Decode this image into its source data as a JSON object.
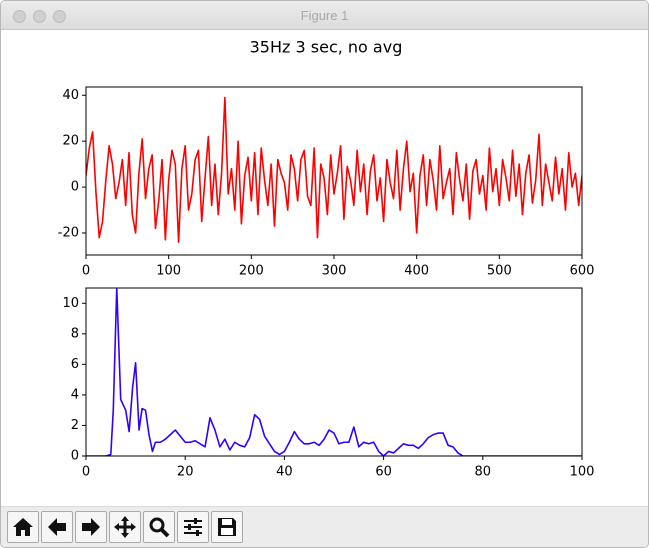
{
  "window_title": "Figure 1",
  "figure_title": "35Hz 3 sec, no avg",
  "chart_data": [
    {
      "type": "line",
      "x": [
        0,
        4,
        8,
        12,
        16,
        20,
        24,
        28,
        32,
        36,
        40,
        44,
        48,
        52,
        56,
        60,
        64,
        68,
        72,
        76,
        80,
        84,
        88,
        92,
        96,
        100,
        104,
        108,
        112,
        116,
        120,
        124,
        128,
        132,
        136,
        140,
        144,
        148,
        152,
        156,
        160,
        164,
        168,
        172,
        176,
        180,
        184,
        188,
        192,
        196,
        200,
        204,
        208,
        212,
        216,
        220,
        224,
        228,
        232,
        236,
        240,
        244,
        248,
        252,
        256,
        260,
        264,
        268,
        272,
        276,
        280,
        284,
        288,
        292,
        296,
        300,
        304,
        308,
        312,
        316,
        320,
        324,
        328,
        332,
        336,
        340,
        344,
        348,
        352,
        356,
        360,
        364,
        368,
        372,
        376,
        380,
        384,
        388,
        392,
        396,
        400,
        404,
        408,
        412,
        416,
        420,
        424,
        428,
        432,
        436,
        440,
        444,
        448,
        452,
        456,
        460,
        464,
        468,
        472,
        476,
        480,
        484,
        488,
        492,
        496,
        500,
        504,
        508,
        512,
        516,
        520,
        524,
        528,
        532,
        536,
        540,
        544,
        548,
        552,
        556,
        560,
        564,
        568,
        572,
        576,
        580,
        584,
        588,
        592,
        596,
        600
      ],
      "series": [
        {
          "name": null,
          "color": "#ff0000",
          "values": [
            5,
            17,
            24,
            -2,
            -22,
            -15,
            3,
            18,
            10,
            -5,
            2,
            12,
            -8,
            15,
            -12,
            -20,
            6,
            21,
            -5,
            8,
            14,
            -18,
            -6,
            12,
            -23,
            3,
            16,
            10,
            -24,
            8,
            18,
            -10,
            -3,
            12,
            16,
            -15,
            4,
            22,
            -8,
            10,
            -12,
            6,
            39,
            -3,
            8,
            -10,
            20,
            -16,
            5,
            13,
            -6,
            15,
            -12,
            17,
            3,
            -8,
            10,
            -17,
            12,
            6,
            2,
            -10,
            14,
            8,
            -6,
            12,
            16,
            -4,
            -8,
            17,
            -22,
            10,
            4,
            -12,
            14,
            -3,
            6,
            18,
            -14,
            9,
            3,
            -8,
            16,
            -2,
            10,
            -12,
            7,
            14,
            -6,
            4,
            -15,
            12,
            2,
            -5,
            16,
            -10,
            8,
            20,
            -2,
            6,
            -20,
            5,
            14,
            -8,
            12,
            3,
            -10,
            18,
            -5,
            2,
            8,
            -12,
            15,
            3,
            -6,
            10,
            -14,
            7,
            12,
            -3,
            5,
            -10,
            17,
            -2,
            8,
            -8,
            12,
            4,
            -6,
            16,
            -4,
            10,
            -12,
            6,
            14,
            -7,
            3,
            23,
            -8,
            10,
            2,
            -6,
            13,
            -3,
            8,
            -10,
            15,
            0,
            6,
            -8,
            5
          ]
        }
      ],
      "xlim": [
        0,
        600
      ],
      "xticks": [
        0,
        100,
        200,
        300,
        400,
        500,
        600
      ],
      "ylim": [
        -29.6,
        43.6
      ],
      "yticks": [
        -20,
        0,
        20,
        40
      ]
    },
    {
      "type": "line",
      "x": [
        0,
        4,
        5,
        5.5,
        6.2,
        7,
        8,
        8.7,
        9.4,
        10,
        10.7,
        11.3,
        12,
        12.7,
        13.4,
        14,
        15,
        16,
        17,
        18,
        19,
        20,
        21,
        22,
        23,
        24,
        25,
        26,
        27,
        28,
        29,
        30,
        31,
        32,
        33,
        34,
        35,
        36,
        37,
        38,
        39,
        40,
        41,
        42,
        43,
        44,
        45,
        46,
        47,
        48,
        49,
        50,
        51,
        52,
        53,
        54,
        55,
        56,
        57,
        58,
        59,
        60,
        61,
        62,
        63,
        64,
        65,
        66,
        67,
        68,
        69,
        70,
        71,
        72,
        73,
        74,
        75,
        76,
        80,
        100
      ],
      "series": [
        {
          "name": null,
          "color": "#3300ff",
          "values": [
            0,
            0,
            0.1,
            3,
            11,
            3.7,
            3.0,
            1.6,
            4.5,
            6.1,
            1.7,
            3.1,
            3.0,
            1.4,
            0.3,
            0.9,
            0.9,
            1.1,
            1.4,
            1.7,
            1.3,
            0.9,
            0.9,
            1.0,
            0.8,
            0.6,
            2.5,
            1.7,
            0.6,
            1.1,
            0.4,
            0.9,
            0.7,
            0.6,
            1.2,
            2.7,
            2.4,
            1.3,
            0.8,
            0.3,
            0.1,
            0.3,
            0.9,
            1.6,
            1.1,
            0.8,
            0.8,
            0.9,
            0.7,
            1.1,
            1.7,
            1.5,
            0.8,
            0.9,
            0.9,
            1.9,
            0.6,
            0.9,
            0.8,
            0.9,
            0.3,
            0,
            0.3,
            0.2,
            0.5,
            0.8,
            0.7,
            0.7,
            0.5,
            0.8,
            1.2,
            1.4,
            1.5,
            1.5,
            0.7,
            0.6,
            0.2,
            0,
            0,
            0
          ]
        }
      ],
      "xlim": [
        0,
        100
      ],
      "xticks": [
        0,
        20,
        40,
        60,
        80,
        100
      ],
      "ylim": [
        0,
        11
      ],
      "yticks": [
        0,
        2,
        4,
        6,
        8,
        10
      ]
    }
  ]
}
